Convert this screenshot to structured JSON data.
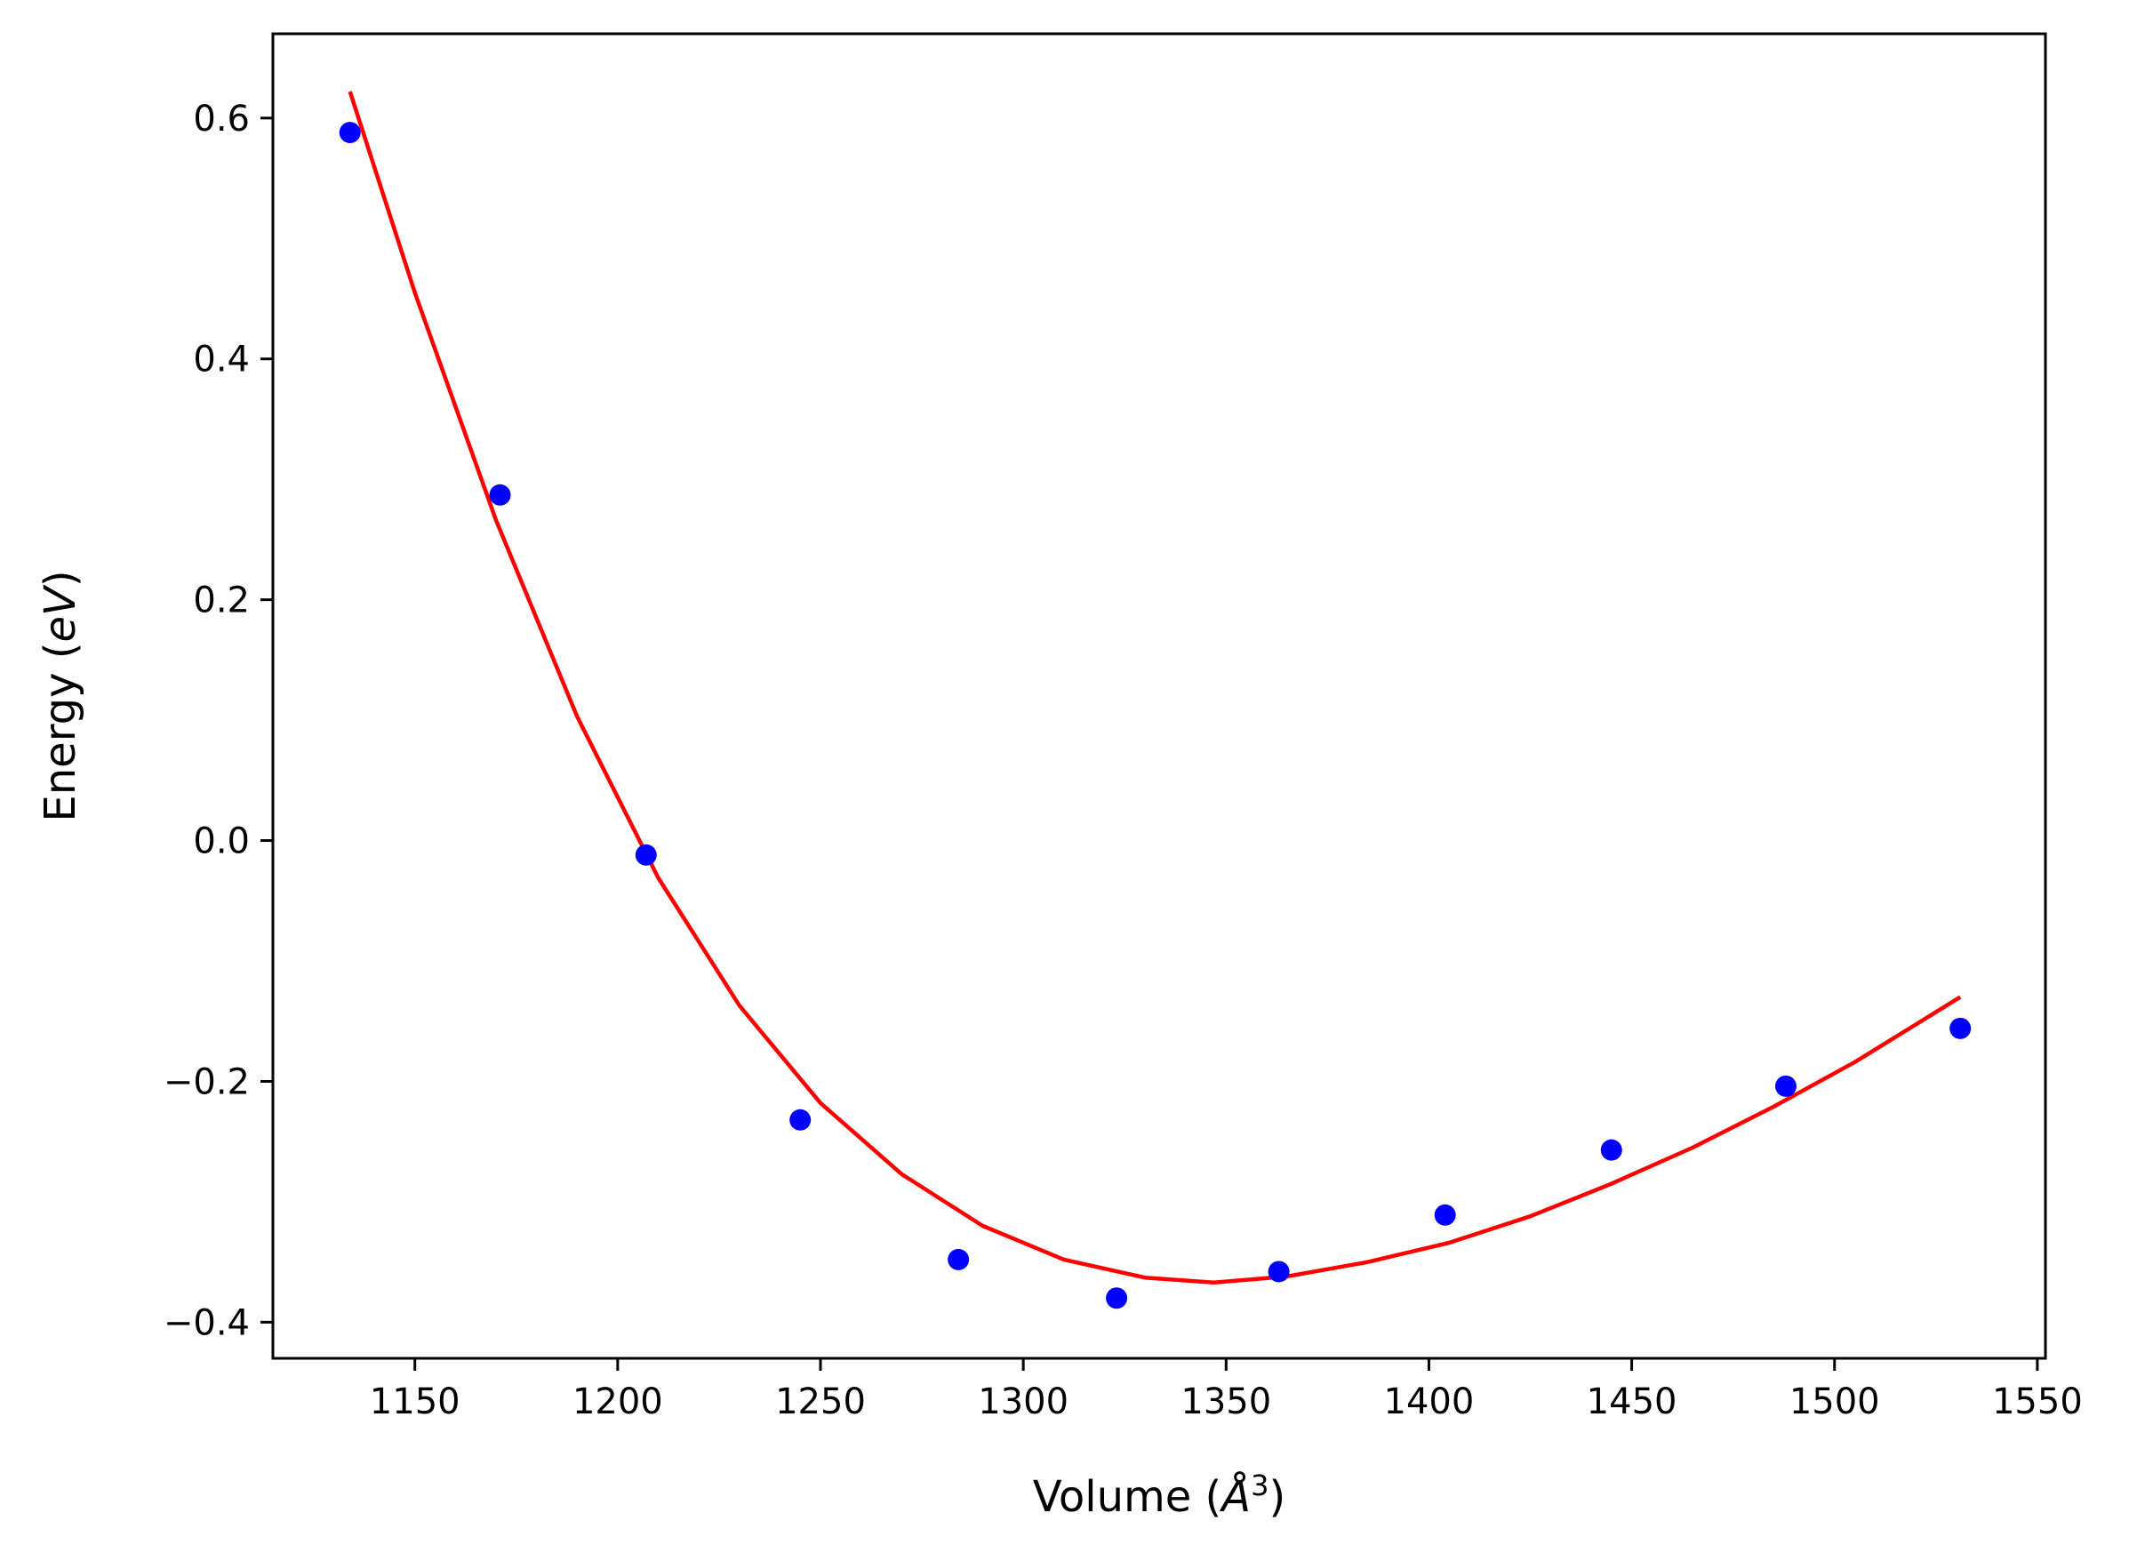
{
  "chart_data": {
    "type": "scatter",
    "title": "",
    "xlabel": "Volume (Å³)",
    "xlabel_parts": {
      "prefix": "Volume (",
      "unit": "Å",
      "sup": "3",
      "suffix": ")"
    },
    "ylabel": "Energy (eV)",
    "ylabel_parts": {
      "prefix": "Energy (",
      "unit": "eV",
      "suffix": ")"
    },
    "xlim": [
      1115,
      1552
    ],
    "ylim": [
      -0.43,
      0.67
    ],
    "x_ticks": [
      1150,
      1200,
      1250,
      1300,
      1350,
      1400,
      1450,
      1500,
      1550
    ],
    "x_tick_labels": [
      "1150",
      "1200",
      "1250",
      "1300",
      "1350",
      "1400",
      "1450",
      "1500",
      "1550"
    ],
    "y_ticks": [
      0.6,
      0.4,
      0.2,
      0.0,
      -0.2,
      -0.4
    ],
    "y_tick_labels": [
      "0.6",
      "0.4",
      "0.2",
      "0.0",
      "−0.2",
      "−0.4"
    ],
    "grid": false,
    "series": [
      {
        "kind": "scatter",
        "color": "#0000ff",
        "x": [
          1134,
          1171,
          1207,
          1245,
          1284,
          1323,
          1363,
          1404,
          1445,
          1488,
          1531
        ],
        "y": [
          0.588,
          0.287,
          -0.012,
          -0.232,
          -0.348,
          -0.38,
          -0.358,
          -0.311,
          -0.257,
          -0.204,
          -0.156
        ]
      },
      {
        "kind": "line",
        "color": "#ff0000",
        "x": [
          1134,
          1150,
          1170,
          1190,
          1210,
          1230,
          1250,
          1270,
          1290,
          1310,
          1330,
          1347,
          1365,
          1385,
          1405,
          1425,
          1445,
          1465,
          1485,
          1505,
          1531
        ],
        "y": [
          0.622,
          0.455,
          0.266,
          0.103,
          -0.031,
          -0.137,
          -0.218,
          -0.277,
          -0.32,
          -0.348,
          -0.363,
          -0.367,
          -0.362,
          -0.35,
          -0.334,
          -0.312,
          -0.285,
          -0.255,
          -0.221,
          -0.184,
          -0.13
        ]
      }
    ]
  }
}
